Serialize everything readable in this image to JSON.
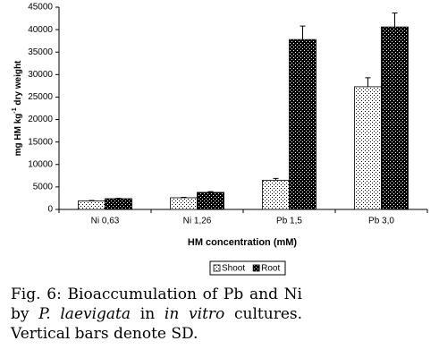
{
  "chart_data": {
    "type": "bar",
    "categories": [
      "Ni 0,63",
      "Ni 1,26",
      "Pb 1,5",
      "Pb 3,0"
    ],
    "series": [
      {
        "name": "Shoot",
        "color": "#ffffff",
        "values": [
          1900,
          2600,
          6500,
          27300
        ],
        "errors": [
          100,
          100,
          400,
          2000
        ]
      },
      {
        "name": "Root",
        "color": "#000000",
        "values": [
          2400,
          3800,
          37800,
          40600
        ],
        "errors": [
          100,
          150,
          3000,
          3100
        ]
      }
    ],
    "ylim": [
      0,
      45000
    ],
    "yticks": [
      0,
      5000,
      10000,
      15000,
      20000,
      25000,
      30000,
      35000,
      40000,
      45000
    ],
    "ylabel": [
      "mg HM kg",
      "-1",
      " dry weight"
    ],
    "xlabel": "HM concentration (mM)",
    "legend": "bottom"
  },
  "caption": [
    {
      "text": "Fig. 6: Bioaccumulation of Pb and Ni by ",
      "italic": false
    },
    {
      "text": "P. laevigata",
      "italic": true
    },
    {
      "text": " in ",
      "italic": false
    },
    {
      "text": "in vitro",
      "italic": true
    },
    {
      "text": " cultures. Vertical bars denote SD.",
      "italic": false
    }
  ]
}
